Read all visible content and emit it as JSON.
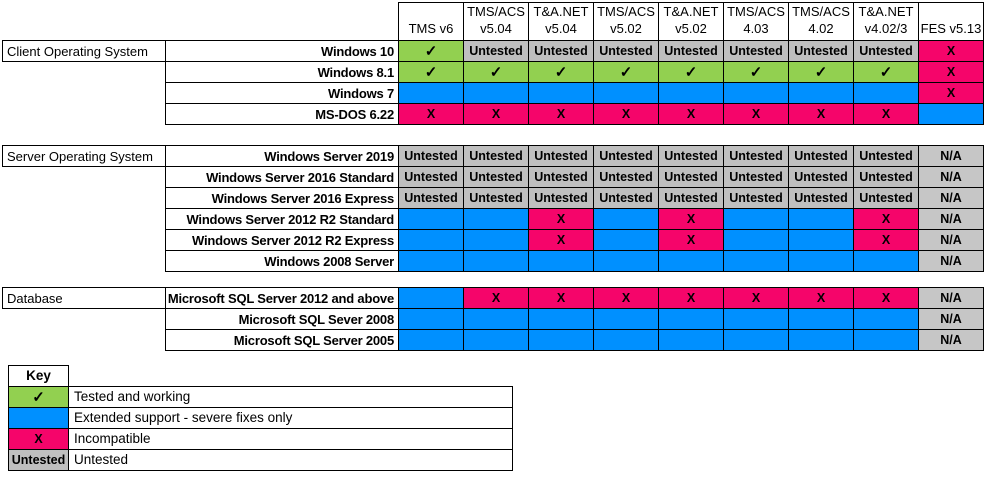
{
  "colors": {
    "tested": "#92D050",
    "extended": "#0090FF",
    "incompatible": "#F5056A",
    "untested": "#BFBFBF",
    "na": "#C6C6C6",
    "border": "#000000"
  },
  "statuses": {
    "tested": "✓",
    "extended": "",
    "incompatible": "X",
    "untested": "Untested",
    "na": "N/A"
  },
  "matrix": {
    "columns": [
      {
        "line1": "",
        "line2": "TMS v6"
      },
      {
        "line1": "TMS/ACS",
        "line2": "v5.04"
      },
      {
        "line1": "T&A.NET",
        "line2": "v5.04"
      },
      {
        "line1": "TMS/ACS",
        "line2": "v5.02"
      },
      {
        "line1": "T&A.NET",
        "line2": "v5.02"
      },
      {
        "line1": "TMS/ACS",
        "line2": "4.03"
      },
      {
        "line1": "TMS/ACS",
        "line2": "4.02"
      },
      {
        "line1": "T&A.NET",
        "line2": "v4.02/3"
      },
      {
        "line1": "",
        "line2": "FES v5.13"
      }
    ],
    "sections": [
      {
        "label": "Client Operating System",
        "rows": [
          {
            "name": "Windows 10",
            "cells": [
              "tested",
              "untested",
              "untested",
              "untested",
              "untested",
              "untested",
              "untested",
              "untested",
              "incompatible"
            ]
          },
          {
            "name": "Windows 8.1",
            "cells": [
              "tested",
              "tested",
              "tested",
              "tested",
              "tested",
              "tested",
              "tested",
              "tested",
              "incompatible"
            ]
          },
          {
            "name": "Windows 7",
            "cells": [
              "extended",
              "extended",
              "extended",
              "extended",
              "extended",
              "extended",
              "extended",
              "extended",
              "incompatible"
            ]
          },
          {
            "name": "MS-DOS 6.22",
            "cells": [
              "incompatible",
              "incompatible",
              "incompatible",
              "incompatible",
              "incompatible",
              "incompatible",
              "incompatible",
              "incompatible",
              "extended"
            ]
          }
        ]
      },
      {
        "label": "Server Operating System",
        "rows": [
          {
            "name": "Windows Server 2019",
            "cells": [
              "untested",
              "untested",
              "untested",
              "untested",
              "untested",
              "untested",
              "untested",
              "untested",
              "na"
            ]
          },
          {
            "name": "Windows Server 2016 Standard",
            "cells": [
              "untested",
              "untested",
              "untested",
              "untested",
              "untested",
              "untested",
              "untested",
              "untested",
              "na"
            ]
          },
          {
            "name": "Windows Server 2016 Express",
            "cells": [
              "untested",
              "untested",
              "untested",
              "untested",
              "untested",
              "untested",
              "untested",
              "untested",
              "na"
            ]
          },
          {
            "name": "Windows Server 2012 R2 Standard",
            "cells": [
              "extended",
              "extended",
              "incompatible",
              "extended",
              "incompatible",
              "extended",
              "extended",
              "incompatible",
              "na"
            ]
          },
          {
            "name": "Windows Server 2012 R2 Express",
            "cells": [
              "extended",
              "extended",
              "incompatible",
              "extended",
              "incompatible",
              "extended",
              "extended",
              "incompatible",
              "na"
            ]
          },
          {
            "name": "Windows 2008 Server",
            "cells": [
              "extended",
              "extended",
              "extended",
              "extended",
              "extended",
              "extended",
              "extended",
              "extended",
              "na"
            ]
          }
        ]
      },
      {
        "label": "Database",
        "rows": [
          {
            "name": "Microsoft SQL Server 2012  and above",
            "cells": [
              "extended",
              "incompatible",
              "incompatible",
              "incompatible",
              "incompatible",
              "incompatible",
              "incompatible",
              "incompatible",
              "na"
            ]
          },
          {
            "name": "Microsoft SQL Sever 2008",
            "cells": [
              "extended",
              "extended",
              "extended",
              "extended",
              "extended",
              "extended",
              "extended",
              "extended",
              "na"
            ]
          },
          {
            "name": "Microsoft SQL Server 2005",
            "cells": [
              "extended",
              "extended",
              "extended",
              "extended",
              "extended",
              "extended",
              "extended",
              "extended",
              "na"
            ]
          }
        ]
      }
    ]
  },
  "key": {
    "title": "Key",
    "entries": [
      {
        "status": "tested",
        "label": "Tested and working"
      },
      {
        "status": "extended",
        "label": "Extended support - severe fixes only"
      },
      {
        "status": "incompatible",
        "label": "Incompatible"
      },
      {
        "status": "untested",
        "label": "Untested"
      }
    ]
  }
}
